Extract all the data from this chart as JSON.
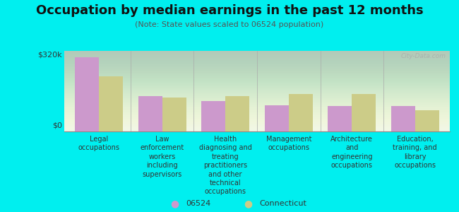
{
  "title": "Occupation by median earnings in the past 12 months",
  "subtitle": "(Note: State values scaled to 06524 population)",
  "categories": [
    "Legal\noccupations",
    "Law\nenforcement\nworkers\nincluding\nsupervisors",
    "Health\ndiagnosing and\ntreating\npractitioners\nand other\ntechnical\noccupations",
    "Management\noccupations",
    "Architecture\nand\nengineering\noccupations",
    "Education,\ntraining, and\nlibrary\noccupations"
  ],
  "values_06524": [
    295000,
    140000,
    120000,
    105000,
    100000,
    100000
  ],
  "values_ct": [
    220000,
    135000,
    140000,
    150000,
    150000,
    85000
  ],
  "ylim": [
    0,
    320000
  ],
  "ytick_positions": [
    0,
    320000
  ],
  "ytick_labels": [
    "$0",
    "$320k"
  ],
  "color_06524": "#cc99cc",
  "color_ct": "#cccc88",
  "background_color": "#00efef",
  "plot_bg": "#eef5e8",
  "legend_06524": "06524",
  "legend_ct": "Connecticut",
  "watermark": "City-Data.com",
  "bar_width": 0.38,
  "title_fontsize": 13,
  "subtitle_fontsize": 8,
  "tick_label_fontsize": 7
}
